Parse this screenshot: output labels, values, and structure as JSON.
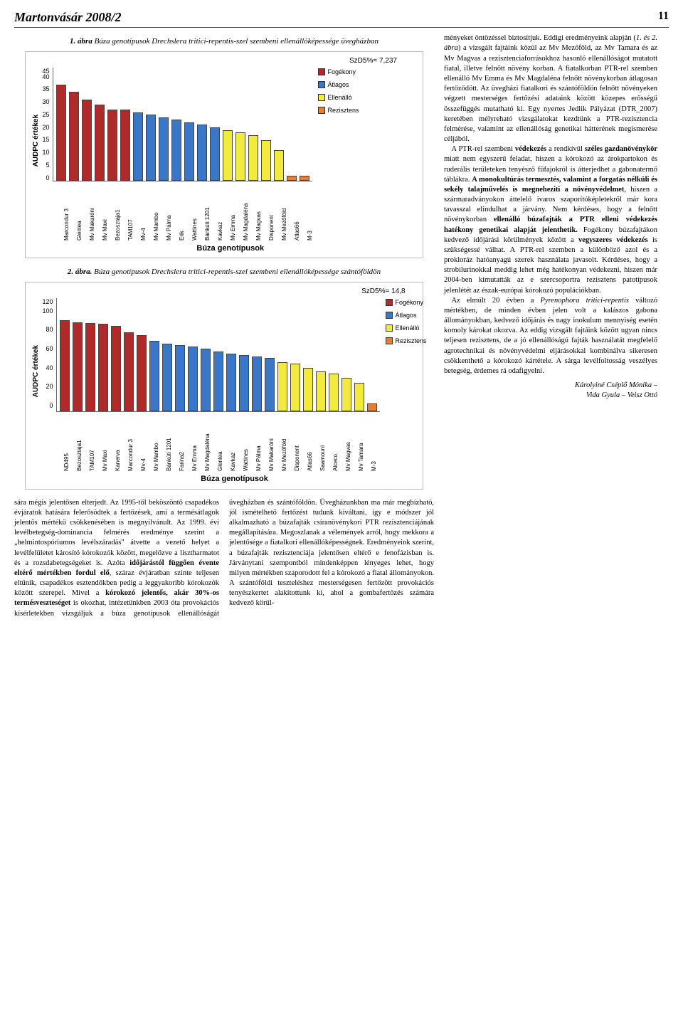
{
  "header": {
    "journal": "Martonvásár 2008/2",
    "page": "11"
  },
  "fig1": {
    "caption_lead": "1. ábra",
    "caption_rest": " Búza genotípusok Drechslera tritici-repentis-szel szembeni ellenállóképessége üvegházban",
    "ylabel": "AUDPC értékek",
    "xlabel": "Búza genotípusok",
    "szd": "SzD5%= 7,237",
    "ymax": 45,
    "ytick_step": 5,
    "legend": [
      {
        "label": "Fogékony",
        "color": "#b02a2a"
      },
      {
        "label": "Átlagos",
        "color": "#3a77c9"
      },
      {
        "label": "Ellenálló",
        "color": "#f2ea3d"
      },
      {
        "label": "Rezisztens",
        "color": "#e87d2e"
      }
    ],
    "bars": [
      {
        "label": "Marcondur 3",
        "v": 38,
        "c": "#b02a2a"
      },
      {
        "label": "Glenlea",
        "v": 35,
        "c": "#b02a2a"
      },
      {
        "label": "Mv Makaróni",
        "v": 32,
        "c": "#b02a2a"
      },
      {
        "label": "Mv Maxi",
        "v": 30,
        "c": "#b02a2a"
      },
      {
        "label": "Bezosztaja1",
        "v": 28,
        "c": "#b02a2a"
      },
      {
        "label": "TAM107",
        "v": 28,
        "c": "#b02a2a"
      },
      {
        "label": "Mv-4",
        "v": 27,
        "c": "#3a77c9"
      },
      {
        "label": "Mv Mambo",
        "v": 26,
        "c": "#3a77c9"
      },
      {
        "label": "Mv Pálma",
        "v": 25,
        "c": "#3a77c9"
      },
      {
        "label": "Erik",
        "v": 24,
        "c": "#3a77c9"
      },
      {
        "label": "Wattines",
        "v": 23,
        "c": "#3a77c9"
      },
      {
        "label": "Bánkúti 1201",
        "v": 22,
        "c": "#3a77c9"
      },
      {
        "label": "Kavkaz",
        "v": 21,
        "c": "#3a77c9"
      },
      {
        "label": "Mv Emma",
        "v": 20,
        "c": "#f2ea3d"
      },
      {
        "label": "Mv Magdaléna",
        "v": 19,
        "c": "#f2ea3d"
      },
      {
        "label": "Mv Magvas",
        "v": 18,
        "c": "#f2ea3d"
      },
      {
        "label": "Disponent",
        "v": 16,
        "c": "#f2ea3d"
      },
      {
        "label": "Mv Mezőföld",
        "v": 12,
        "c": "#f2ea3d"
      },
      {
        "label": "Atlas66",
        "v": 2,
        "c": "#e87d2e"
      },
      {
        "label": "M-3",
        "v": 2,
        "c": "#e87d2e"
      }
    ]
  },
  "fig2": {
    "caption_lead": "2. ábra.",
    "caption_rest": " Búza genotípusok Drechslera tritici-repentis-szel szembeni ellenállóképessége szántóföldön",
    "ylabel": "AUDPC értékek",
    "xlabel": "Búza genotípusok",
    "szd": "SzD5%= 14,8",
    "ymax": 120,
    "ytick_step": 20,
    "legend": [
      {
        "label": "Fogékony",
        "color": "#b02a2a"
      },
      {
        "label": "Átlagos",
        "color": "#3a77c9"
      },
      {
        "label": "Ellenálló",
        "color": "#f2ea3d"
      },
      {
        "label": "Rezisztens",
        "color": "#e87d2e"
      }
    ],
    "bars": [
      {
        "label": "ND495",
        "v": 96,
        "c": "#b02a2a"
      },
      {
        "label": "Bezosztaja1",
        "v": 94,
        "c": "#b02a2a"
      },
      {
        "label": "TAM107",
        "v": 93,
        "c": "#b02a2a"
      },
      {
        "label": "Mv Maxi",
        "v": 92,
        "c": "#b02a2a"
      },
      {
        "label": "Kanerva",
        "v": 90,
        "c": "#b02a2a"
      },
      {
        "label": "Marcondur 3",
        "v": 83,
        "c": "#b02a2a"
      },
      {
        "label": "Mv-4",
        "v": 80,
        "c": "#b02a2a"
      },
      {
        "label": "Mv Mambo",
        "v": 74,
        "c": "#3a77c9"
      },
      {
        "label": "Bánkúti 1201",
        "v": 71,
        "c": "#3a77c9"
      },
      {
        "label": "Farina2",
        "v": 70,
        "c": "#3a77c9"
      },
      {
        "label": "Mv Emma",
        "v": 68,
        "c": "#3a77c9"
      },
      {
        "label": "Mv Magdaléna",
        "v": 66,
        "c": "#3a77c9"
      },
      {
        "label": "Glenlea",
        "v": 63,
        "c": "#3a77c9"
      },
      {
        "label": "Kavkaz",
        "v": 61,
        "c": "#3a77c9"
      },
      {
        "label": "Wattines",
        "v": 59,
        "c": "#3a77c9"
      },
      {
        "label": "Mv Pálma",
        "v": 58,
        "c": "#3a77c9"
      },
      {
        "label": "Mv Makaróni",
        "v": 56,
        "c": "#3a77c9"
      },
      {
        "label": "Mv Mezőföld",
        "v": 52,
        "c": "#f2ea3d"
      },
      {
        "label": "Disponent",
        "v": 50,
        "c": "#f2ea3d"
      },
      {
        "label": "Atlas66",
        "v": 46,
        "c": "#f2ea3d"
      },
      {
        "label": "Saamouni",
        "v": 42,
        "c": "#f2ea3d"
      },
      {
        "label": "Alceco",
        "v": 40,
        "c": "#f2ea3d"
      },
      {
        "label": "Mv Magvas",
        "v": 35,
        "c": "#f2ea3d"
      },
      {
        "label": "Mv Tamara",
        "v": 30,
        "c": "#f2ea3d"
      },
      {
        "label": "M-3",
        "v": 8,
        "c": "#e87d2e"
      }
    ]
  },
  "left_text": "sára mégis jelentősen elterjedt. Az 1995-től beköszöntő csapadékos évjáratok hatására felerősödtek a fertőzések, ami a termésátlagok jelentős mértékű csökkenésében is megnyilvánult. Az 1999. évi levélbetegség-dominancia felmérés eredménye szerint a „helmintospóriumos levélszáradás\" átvette a vezető helyet a levélfelületet károsító kórokozók között, megelőzve a lisztharmatot és a rozsdabetegségeket is. Azóta ",
  "left_text_bold1": "időjárástól függően évente eltérő mértékben fordul elő",
  "left_text2": ", száraz évjáratban szinte teljesen eltűnik, csapadékos esztendőkben pedig a leggyakoribb kórokozók között szerepel.\n   Mivel a ",
  "left_text_bold2": "kórokozó jelentős, akár 30%-os termésveszteséget",
  "left_text3": " is okozhat, intézetünkben 2003 óta provokációs kísérletekben vizsgáljuk a búza genotípusok ellenállóságát üvegházban és szántóföldön. Üvegházunkban ma már megbízható, jól ismételhető fertőzést tudunk kiváltani, így e módszer jól alkalmazható a búzafajták csíranövénykori PTR rezisztenciájának megállapítására. Megoszlanak a vélemények arról, hogy mekkora a jelentősége a fiatalkori ellenállóképességnek. Eredményeink szerint, a búzafajták rezisztenciája jelentősen eltérő e fenofázisban is. Járványtani szempontból mindenképpen lényeges lehet, hogy milyen mértékben szaporodott fel a kórokozó a fiatal állományokon. A szántóföldi teszteléshez mesterségesen fertőzött provokációs tenyészkertet alakítottunk ki, ahol a gombafertőzés számára kedvező körül-",
  "right_p1": "ményeket öntözéssel biztosítjuk. Eddigi eredményeink alapján (",
  "right_it1": "1. és 2. ábra",
  "right_p2": ") a vizsgált fajtáink közül az Mv Mezőföld, az Mv Tamara és az Mv Magvas a rezisztenciaforrásokhoz hasonló ellenállóságot mutatott fiatal, illetve felnőtt növény korban. A fiatalkorban PTR-rel szemben ellenálló Mv Emma és Mv Magdaléna felnőtt növénykorban átlagosan fertőződött. Az üvegházi fiatalkori és szántóföldön felnőtt növényeken végzett mesterséges fertőzési adataink között közepes erősségű összefüggés mutatható ki. Egy nyertes Jedlik Pályázat (DTR_2007) keretében mélyreható vizsgálatokat kezdtünk a PTR-rezisztencia felmérése, valamint az ellenállóság genetikai hátterének megismerése céljából.",
  "right_p3a": "A PTR-rel szembeni ",
  "right_b1": "védekezés",
  "right_p3b": " a rendkívül ",
  "right_b2": "széles gazdanövénykör",
  "right_p3c": " miatt nem egyszerű feladat, hiszen a kórokozó az árokpartokon és ruderális területeken tenyésző fűfajokról is átterjedhet a gabonatermő táblákra. ",
  "right_b3": "A monokultúrás termesztés, valamint a forgatás nélküli és sekély talajművelés is megnehezíti a növényvédelmet",
  "right_p3d": ", hiszen a szármaradványokon áttelelő ivaros szaporítóképletekről már kora tavasszal elindulhat a járvány. Nem kérdéses, hogy a felnőtt növénykorban ",
  "right_b4": "ellenálló búzafajták a PTR elleni védekezés hatékony genetikai alapját jelenthetik.",
  "right_p3e": " Fogékony búzafajtákon kedvező időjárási körülmények között a ",
  "right_b5": "vegyszeres védekezés",
  "right_p3f": " is szükségessé válhat. A PTR-rel szemben a különböző azol és a prokloráz hatóanyagú szerek használata javasolt. Kérdéses, hogy a strobilurinokkal meddig lehet még hatékonyan védekezni, hiszen már 2004-ben kimutatták az e szercsoportra rezisztens patotípusok jelenlétét az észak-európai kórokozó populációkban.",
  "right_p4a": "Az elmúlt 20 évben a ",
  "right_it2": "Pyrenophora tritici-repentis",
  "right_p4b": " változó mértékben, de minden évben jelen volt a kalászos gabona állományokban, kedvező időjárás és nagy inokulum mennyiség esetén komoly károkat okozva. Az eddig vizsgált fajtáink között ugyan nincs teljesen rezisztens, de a jó ellenállóságú fajták használatát megfelelő agrotechnikai és növényvédelmi eljárásokkal kombinálva sikeresen csökkenthető a kórokozó kártétele. A sárga levélfoltosság veszélyes betegség, érdemes rá odafigyelni.",
  "authors1": "Károlyiné Cséplő Mónika –",
  "authors2": "Vida Gyula – Veisz Ottó"
}
